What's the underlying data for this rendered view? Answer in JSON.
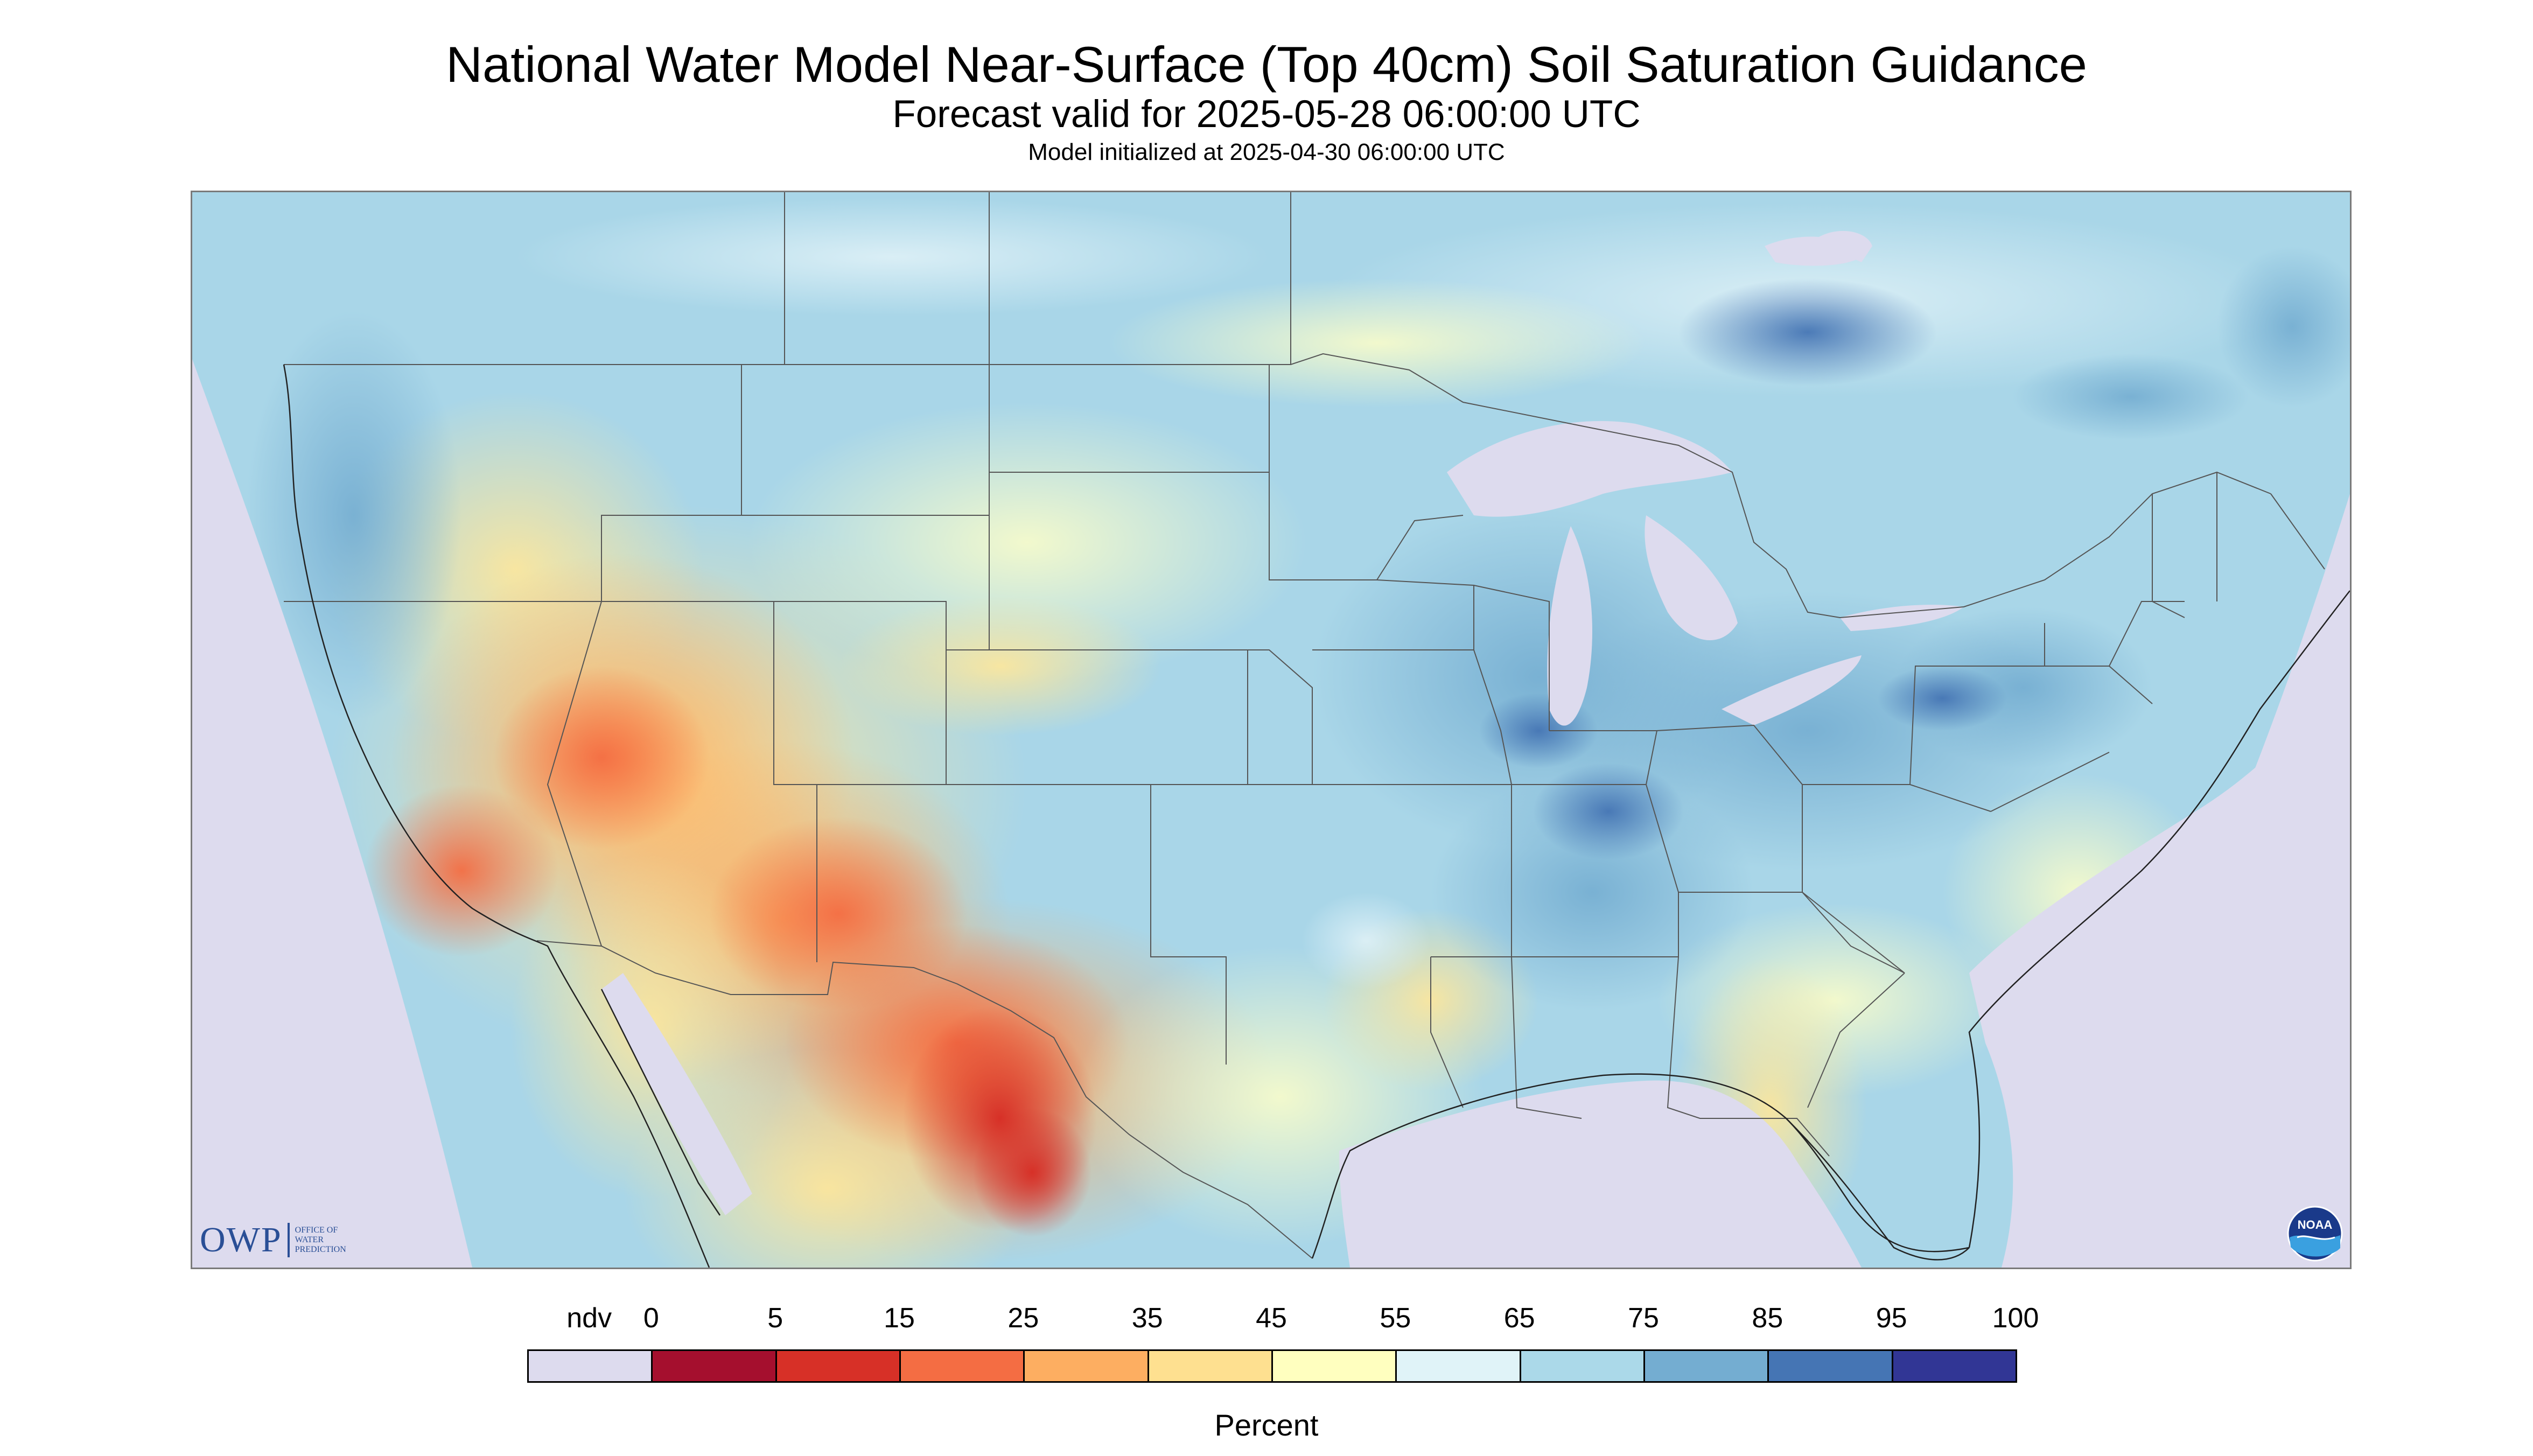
{
  "title": "National Water Model Near-Surface (Top 40cm) Soil Saturation Guidance",
  "subtitle": "Forecast valid for 2025-05-28 06:00:00 UTC",
  "init_line": "Model initialized at 2025-04-30 06:00:00 UTC",
  "legend": {
    "unit": "Percent",
    "ticks": [
      "ndv",
      "0",
      "5",
      "15",
      "25",
      "35",
      "45",
      "55",
      "65",
      "75",
      "85",
      "95",
      "100"
    ],
    "classes": [
      {
        "label": "ndv",
        "color": "#dddbee"
      },
      {
        "label": "0-5",
        "color": "#a50f2e"
      },
      {
        "label": "5-15",
        "color": "#d73027"
      },
      {
        "label": "15-25",
        "color": "#f46d43"
      },
      {
        "label": "25-35",
        "color": "#fdae61"
      },
      {
        "label": "35-45",
        "color": "#fee090"
      },
      {
        "label": "45-55",
        "color": "#ffffbf"
      },
      {
        "label": "55-65",
        "color": "#e0f3f8"
      },
      {
        "label": "65-75",
        "color": "#abd9e9"
      },
      {
        "label": "75-85",
        "color": "#74add1"
      },
      {
        "label": "85-95",
        "color": "#4575b4"
      },
      {
        "label": "95-100",
        "color": "#313695"
      }
    ]
  },
  "logos": {
    "owp": {
      "letters": "OWP",
      "text": "OFFICE OF\nWATER\nPREDICTION",
      "icon": "owp-logo"
    },
    "noaa": {
      "text": "NOAA",
      "icon": "noaa-logo"
    }
  },
  "map": {
    "nodata_color": "#dddbee",
    "water_color": "#dddbee",
    "border_color": "#555555"
  }
}
